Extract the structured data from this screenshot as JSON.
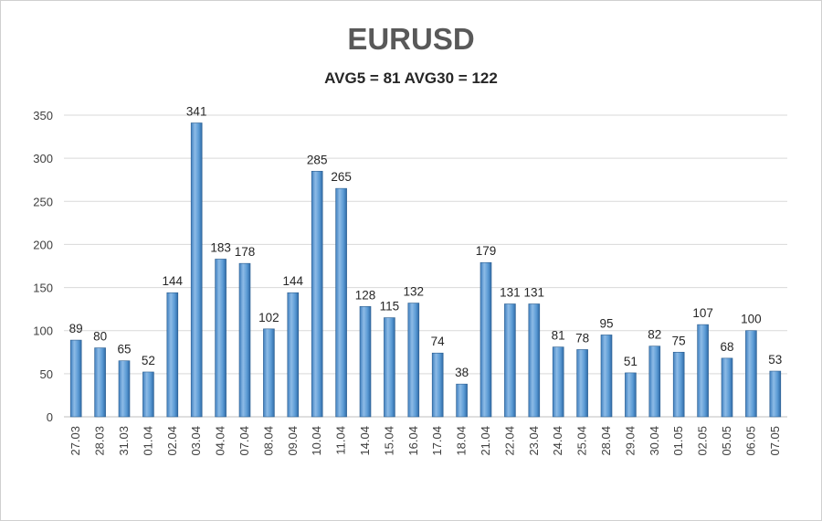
{
  "chart_data": {
    "type": "bar",
    "title": "EURUSD",
    "subtitle": "AVG5 = 81 AVG30 = 122",
    "xlabel": "",
    "ylabel": "",
    "ylim": [
      0,
      350
    ],
    "yticks": [
      0,
      50,
      100,
      150,
      200,
      250,
      300,
      350
    ],
    "grid": true,
    "legend": "none",
    "bar_color": "#5B9BD5",
    "categories": [
      "27.03",
      "28.03",
      "31.03",
      "01.04",
      "02.04",
      "03.04",
      "04.04",
      "07.04",
      "08.04",
      "09.04",
      "10.04",
      "11.04",
      "14.04",
      "15.04",
      "16.04",
      "17.04",
      "18.04",
      "21.04",
      "22.04",
      "23.04",
      "24.04",
      "25.04",
      "28.04",
      "29.04",
      "30.04",
      "01.05",
      "02.05",
      "05.05",
      "06.05",
      "07.05"
    ],
    "values": [
      89,
      80,
      65,
      52,
      144,
      341,
      183,
      178,
      102,
      144,
      285,
      265,
      128,
      115,
      132,
      74,
      38,
      179,
      131,
      131,
      81,
      78,
      95,
      51,
      82,
      75,
      107,
      68,
      100,
      53
    ]
  }
}
